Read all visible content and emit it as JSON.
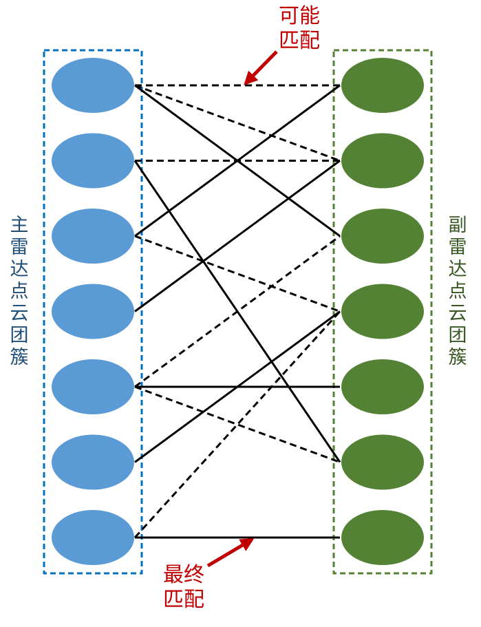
{
  "colors": {
    "primary_node": "#5b9bd5",
    "primary_border": "#0070c0",
    "primary_label": "#1f4e79",
    "secondary_node": "#548235",
    "secondary_border": "#548235",
    "secondary_label": "#385723",
    "annotation": "#c00000",
    "line": "#000000"
  },
  "labels": {
    "primary_cluster": "主雷达点云团簇",
    "secondary_cluster": "副雷达点云团簇",
    "possible_match": "可能匹配",
    "final_match": "最终匹配"
  },
  "legend": {
    "possible_match_style": "dashed",
    "final_match_style": "solid"
  },
  "nodes": {
    "primary_count": 7,
    "secondary_count": 7
  },
  "edges": [
    {
      "from": 1,
      "to": 1,
      "type": "possible"
    },
    {
      "from": 1,
      "to": 2,
      "type": "possible"
    },
    {
      "from": 1,
      "to": 3,
      "type": "final"
    },
    {
      "from": 2,
      "to": 2,
      "type": "possible"
    },
    {
      "from": 2,
      "to": 6,
      "type": "final"
    },
    {
      "from": 3,
      "to": 1,
      "type": "final"
    },
    {
      "from": 3,
      "to": 4,
      "type": "possible"
    },
    {
      "from": 4,
      "to": 2,
      "type": "final"
    },
    {
      "from": 5,
      "to": 3,
      "type": "possible"
    },
    {
      "from": 5,
      "to": 5,
      "type": "final"
    },
    {
      "from": 5,
      "to": 6,
      "type": "possible"
    },
    {
      "from": 6,
      "to": 4,
      "type": "final"
    },
    {
      "from": 7,
      "to": 4,
      "type": "possible"
    },
    {
      "from": 7,
      "to": 7,
      "type": "final"
    }
  ]
}
